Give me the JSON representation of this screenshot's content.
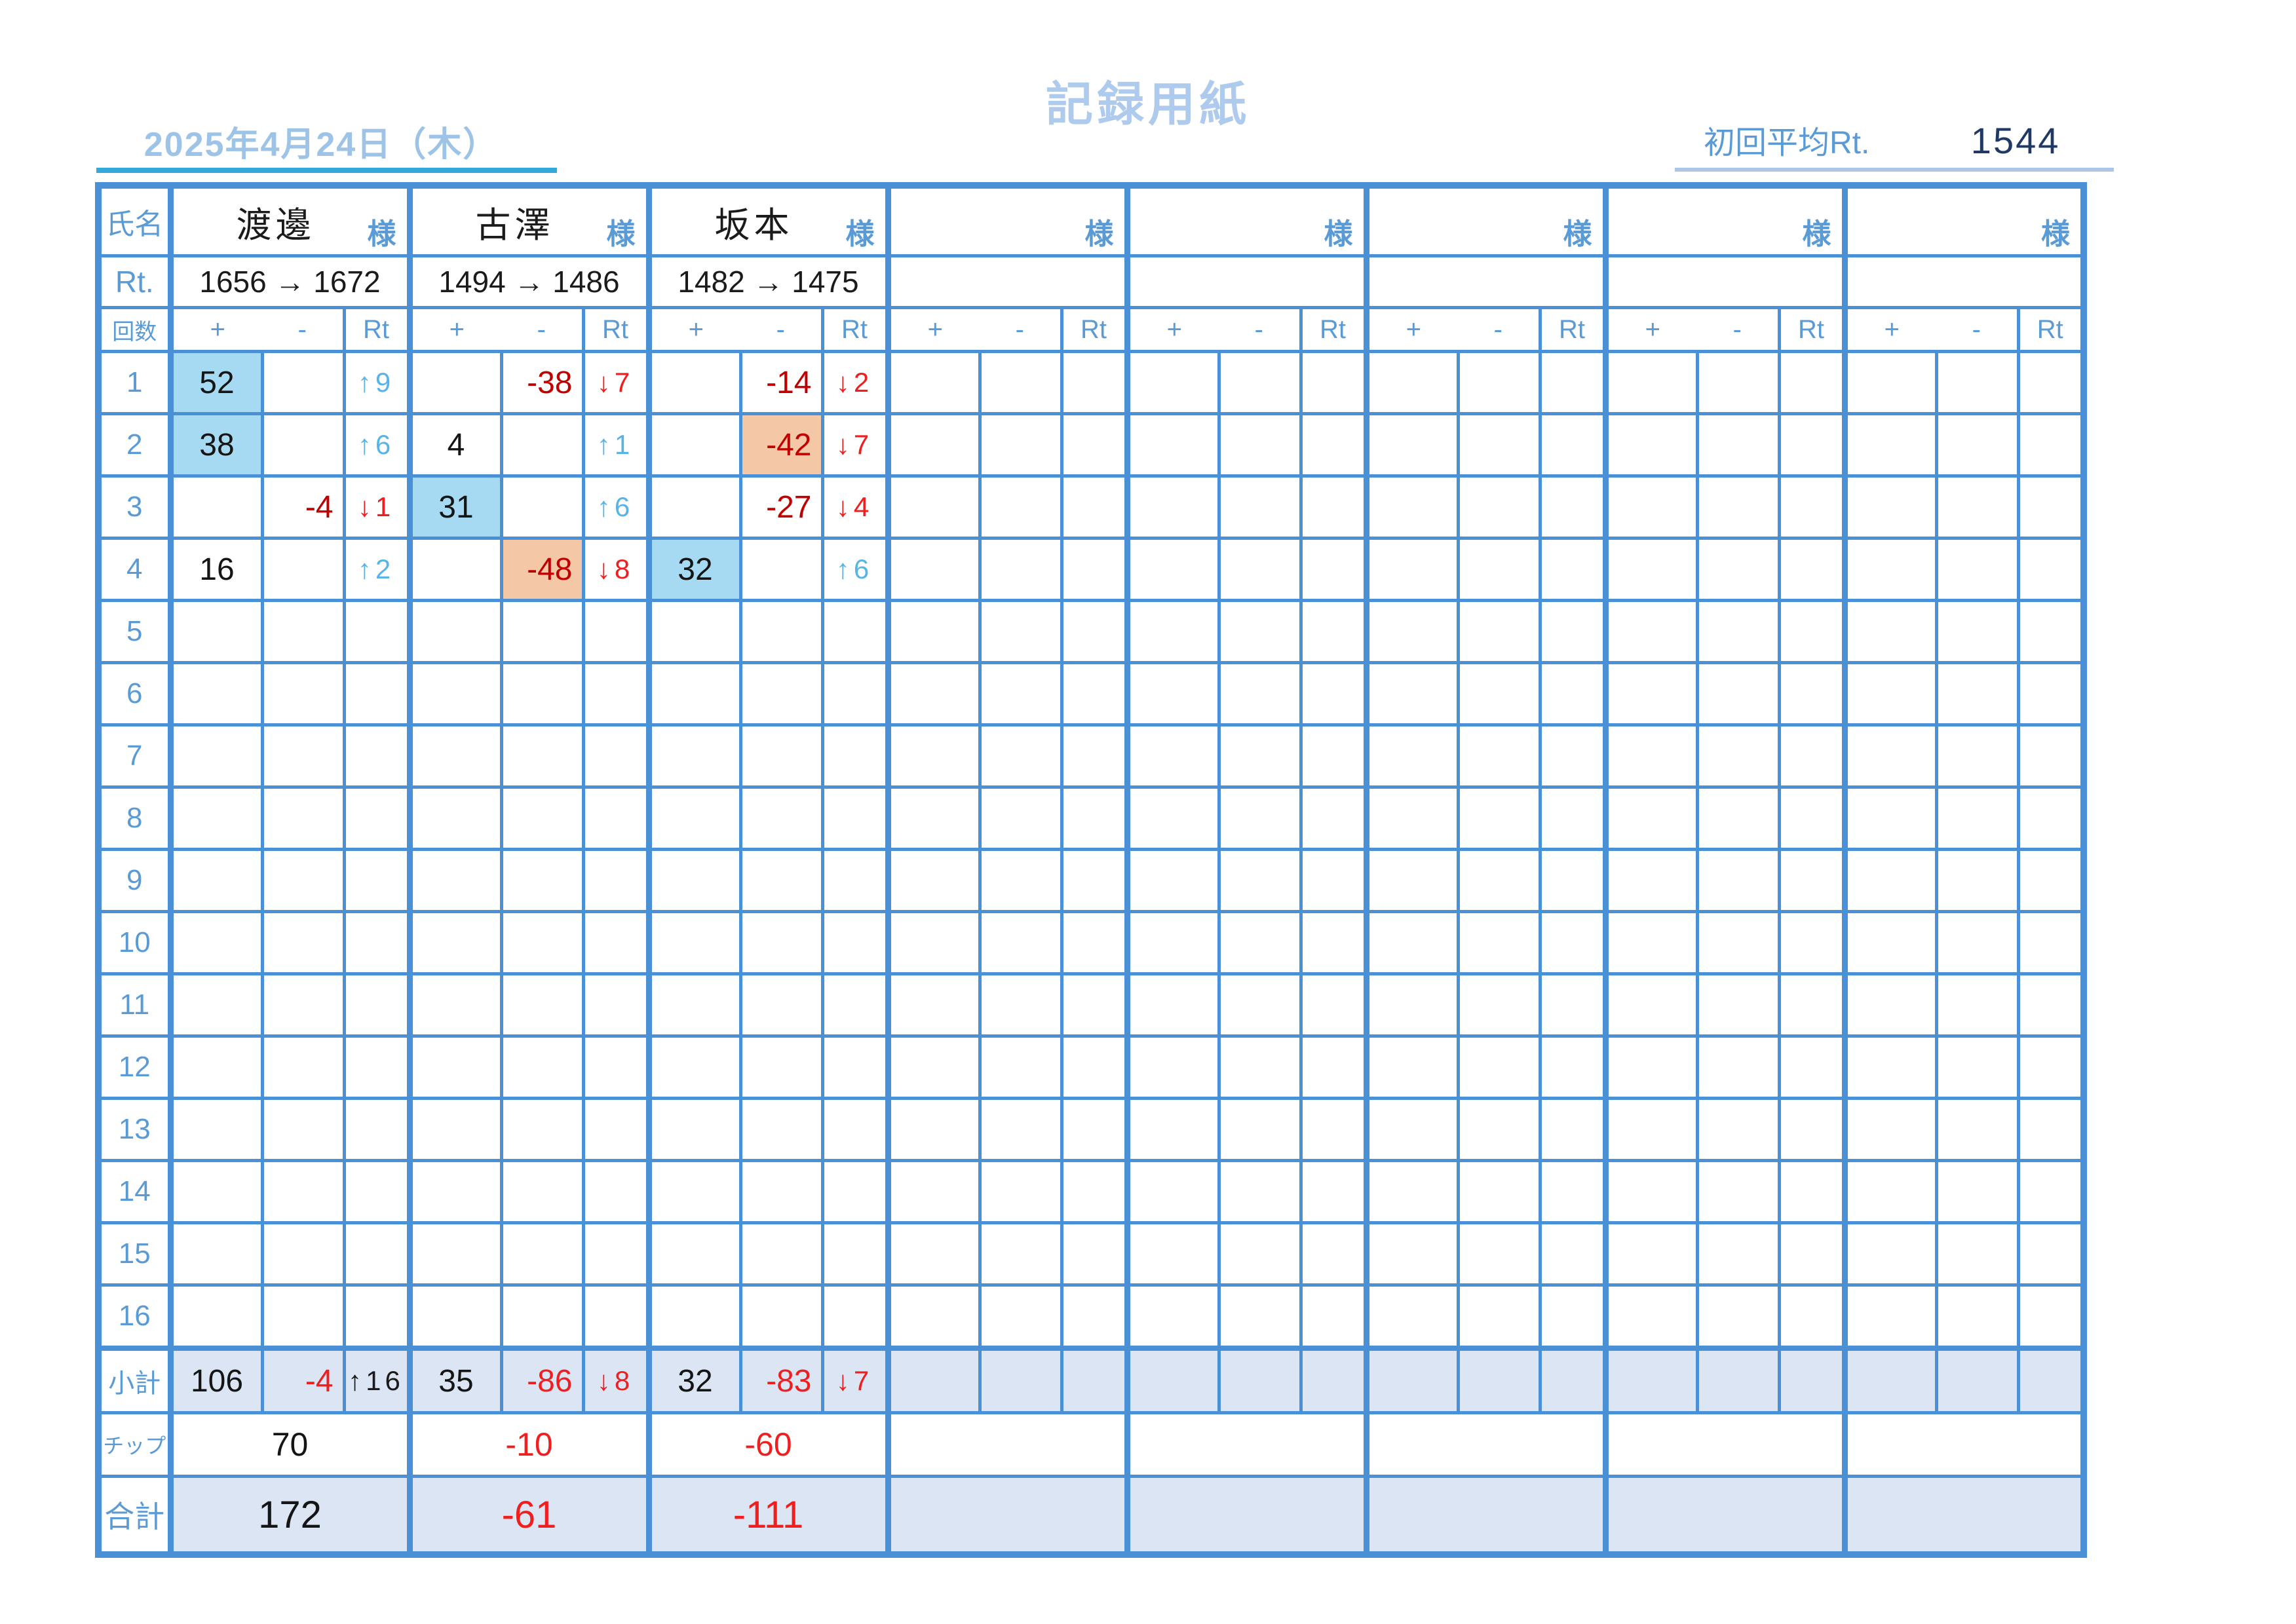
{
  "colors": {
    "border_blue": "#4a90d6",
    "label_blue": "#5b9bd5",
    "title_blue": "#aecbee",
    "date_blue": "#9dc3e6",
    "date_underline": "#35a8da",
    "avg_underline": "#abc6e8",
    "navy": "#1f3864",
    "dark_red": "#c00000",
    "red": "#f01e1e",
    "cyan_arrow": "#58b4e6",
    "hl_blue": "#a6daf3",
    "hl_orange": "#f4c8a6",
    "row_bg": "#dbe5f4"
  },
  "header": {
    "date": "2025年4月24日（木）",
    "title": "記録用紙",
    "avg_label": "初回平均Rt.",
    "avg_value": "1544"
  },
  "table": {
    "name_label": "氏名",
    "rt_label": "Rt.",
    "rounds_label": "回数",
    "sama": "様",
    "col_plus": "+",
    "col_minus": "-",
    "col_rt": "Rt",
    "subtotal_label": "小計",
    "chip_label": "チップ",
    "total_label": "合計",
    "players": [
      {
        "name": "渡邊",
        "rt_transition": "1656 → 1672",
        "subtotal": {
          "plus": "106",
          "minus": "-4",
          "rt": "↑16",
          "rt_tone": "black"
        },
        "chip": "70",
        "total": "172"
      },
      {
        "name": "古澤",
        "rt_transition": "1494 → 1486",
        "subtotal": {
          "plus": "35",
          "minus": "-86",
          "rt": "↓8",
          "rt_tone": "red"
        },
        "chip": "-10",
        "total": "-61"
      },
      {
        "name": "坂本",
        "rt_transition": "1482 → 1475",
        "subtotal": {
          "plus": "32",
          "minus": "-83",
          "rt": "↓7",
          "rt_tone": "red"
        },
        "chip": "-60",
        "total": "-111"
      },
      {
        "name": "",
        "rt_transition": "",
        "subtotal": {},
        "chip": "",
        "total": ""
      },
      {
        "name": "",
        "rt_transition": "",
        "subtotal": {},
        "chip": "",
        "total": ""
      },
      {
        "name": "",
        "rt_transition": "",
        "subtotal": {},
        "chip": "",
        "total": ""
      },
      {
        "name": "",
        "rt_transition": "",
        "subtotal": {},
        "chip": "",
        "total": ""
      },
      {
        "name": "",
        "rt_transition": "",
        "subtotal": {},
        "chip": "",
        "total": ""
      }
    ],
    "rounds": [
      {
        "no": "1",
        "cells": [
          {
            "plus": "52",
            "hl_plus": "blue",
            "rt": "↑9",
            "dir": "up"
          },
          {
            "minus": "-38",
            "rt": "↓7",
            "dir": "down"
          },
          {
            "minus": "-14",
            "rt": "↓2",
            "dir": "down"
          },
          {},
          {},
          {},
          {},
          {}
        ]
      },
      {
        "no": "2",
        "cells": [
          {
            "plus": "38",
            "hl_plus": "blue",
            "rt": "↑6",
            "dir": "up"
          },
          {
            "plus": "4",
            "rt": "↑1",
            "dir": "up"
          },
          {
            "minus": "-42",
            "hl_minus": "orange",
            "rt": "↓7",
            "dir": "down"
          },
          {},
          {},
          {},
          {},
          {}
        ]
      },
      {
        "no": "3",
        "cells": [
          {
            "minus": "-4",
            "rt": "↓1",
            "dir": "down"
          },
          {
            "plus": "31",
            "hl_plus": "blue",
            "rt": "↑6",
            "dir": "up"
          },
          {
            "minus": "-27",
            "rt": "↓4",
            "dir": "down"
          },
          {},
          {},
          {},
          {},
          {}
        ]
      },
      {
        "no": "4",
        "cells": [
          {
            "plus": "16",
            "rt": "↑2",
            "dir": "up"
          },
          {
            "minus": "-48",
            "hl_minus": "orange",
            "rt": "↓8",
            "dir": "down"
          },
          {
            "plus": "32",
            "hl_plus": "blue",
            "rt": "↑6",
            "dir": "up"
          },
          {},
          {},
          {},
          {},
          {}
        ]
      },
      {
        "no": "5",
        "cells": [
          {},
          {},
          {},
          {},
          {},
          {},
          {},
          {}
        ]
      },
      {
        "no": "6",
        "cells": [
          {},
          {},
          {},
          {},
          {},
          {},
          {},
          {}
        ]
      },
      {
        "no": "7",
        "cells": [
          {},
          {},
          {},
          {},
          {},
          {},
          {},
          {}
        ]
      },
      {
        "no": "8",
        "cells": [
          {},
          {},
          {},
          {},
          {},
          {},
          {},
          {}
        ]
      },
      {
        "no": "9",
        "cells": [
          {},
          {},
          {},
          {},
          {},
          {},
          {},
          {}
        ]
      },
      {
        "no": "10",
        "cells": [
          {},
          {},
          {},
          {},
          {},
          {},
          {},
          {}
        ]
      },
      {
        "no": "11",
        "cells": [
          {},
          {},
          {},
          {},
          {},
          {},
          {},
          {}
        ]
      },
      {
        "no": "12",
        "cells": [
          {},
          {},
          {},
          {},
          {},
          {},
          {},
          {}
        ]
      },
      {
        "no": "13",
        "cells": [
          {},
          {},
          {},
          {},
          {},
          {},
          {},
          {}
        ]
      },
      {
        "no": "14",
        "cells": [
          {},
          {},
          {},
          {},
          {},
          {},
          {},
          {}
        ]
      },
      {
        "no": "15",
        "cells": [
          {},
          {},
          {},
          {},
          {},
          {},
          {},
          {}
        ]
      },
      {
        "no": "16",
        "cells": [
          {},
          {},
          {},
          {},
          {},
          {},
          {},
          {}
        ]
      }
    ]
  }
}
